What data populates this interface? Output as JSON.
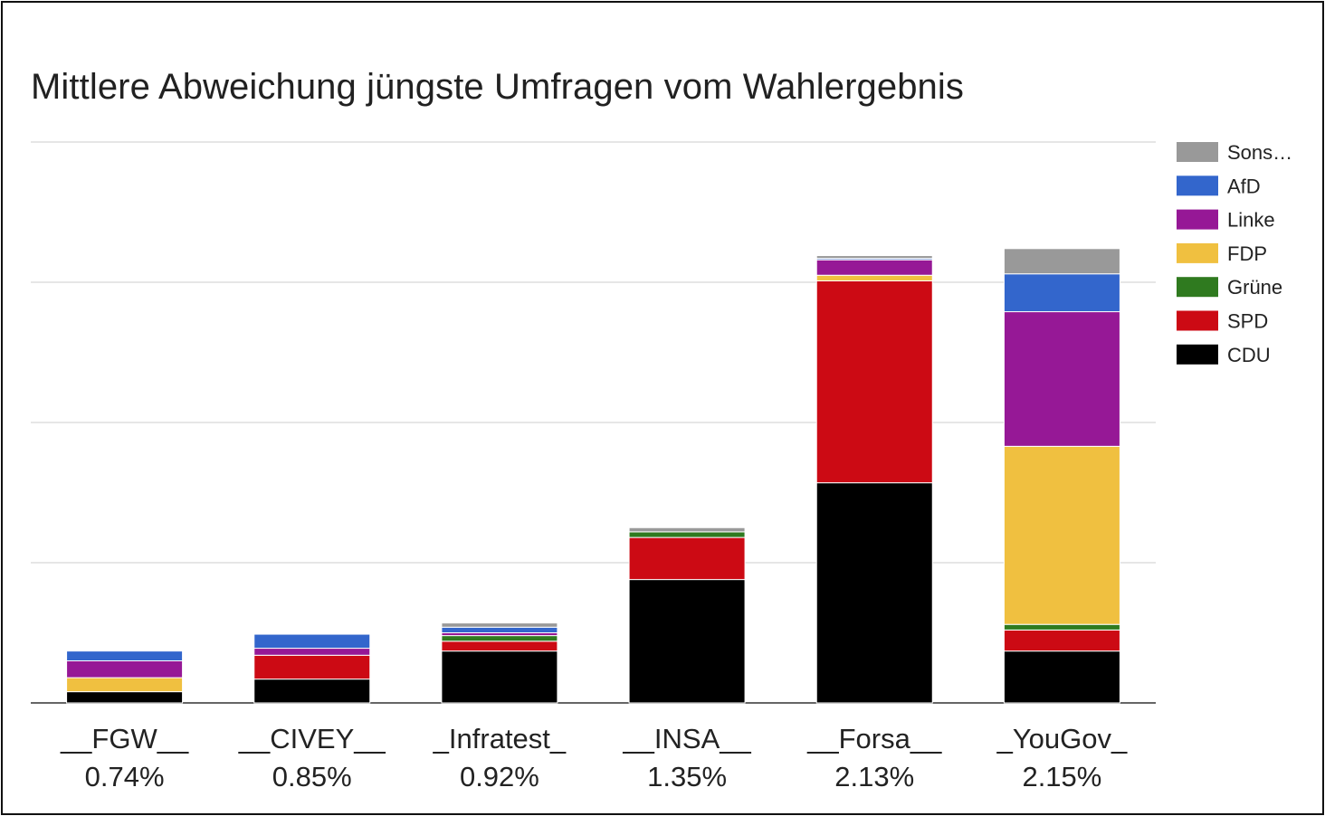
{
  "chart_data": {
    "type": "bar",
    "stacked": true,
    "title": "Mittlere Abweichung jüngste Umfragen vom Wahlergebnis",
    "categories": [
      "__FGW__",
      "__CIVEY__",
      "_Infratest_",
      "__INSA__",
      "__Forsa__",
      "_YouGov_"
    ],
    "category_sublabels": [
      "0.74%",
      "0.85%",
      "0.92%",
      "1.35%",
      "2.13%",
      "2.15%"
    ],
    "ylim": [
      0,
      4
    ],
    "grid": true,
    "y_tick_labels_shown": false,
    "legend_position": "right",
    "series": [
      {
        "name": "CDU",
        "color": "#000000",
        "values": [
          0.08,
          0.17,
          0.37,
          0.88,
          1.57,
          0.37
        ]
      },
      {
        "name": "SPD",
        "color": "#cc0a14",
        "values": [
          0.0,
          0.17,
          0.07,
          0.3,
          1.44,
          0.15
        ]
      },
      {
        "name": "Grüne",
        "color": "#2f7a1f",
        "values": [
          0.0,
          0.0,
          0.04,
          0.04,
          0.0,
          0.04
        ]
      },
      {
        "name": "FDP",
        "color": "#f0c040",
        "values": [
          0.1,
          0.0,
          0.0,
          0.0,
          0.04,
          1.27
        ]
      },
      {
        "name": "Linke",
        "color": "#961896",
        "values": [
          0.12,
          0.05,
          0.02,
          0.0,
          0.11,
          0.96
        ]
      },
      {
        "name": "AfD",
        "color": "#3366cc",
        "values": [
          0.07,
          0.1,
          0.04,
          0.0,
          0.01,
          0.27
        ]
      },
      {
        "name": "Sons…",
        "color": "#999999",
        "values": [
          0.0,
          0.0,
          0.03,
          0.03,
          0.02,
          0.18
        ]
      }
    ]
  }
}
